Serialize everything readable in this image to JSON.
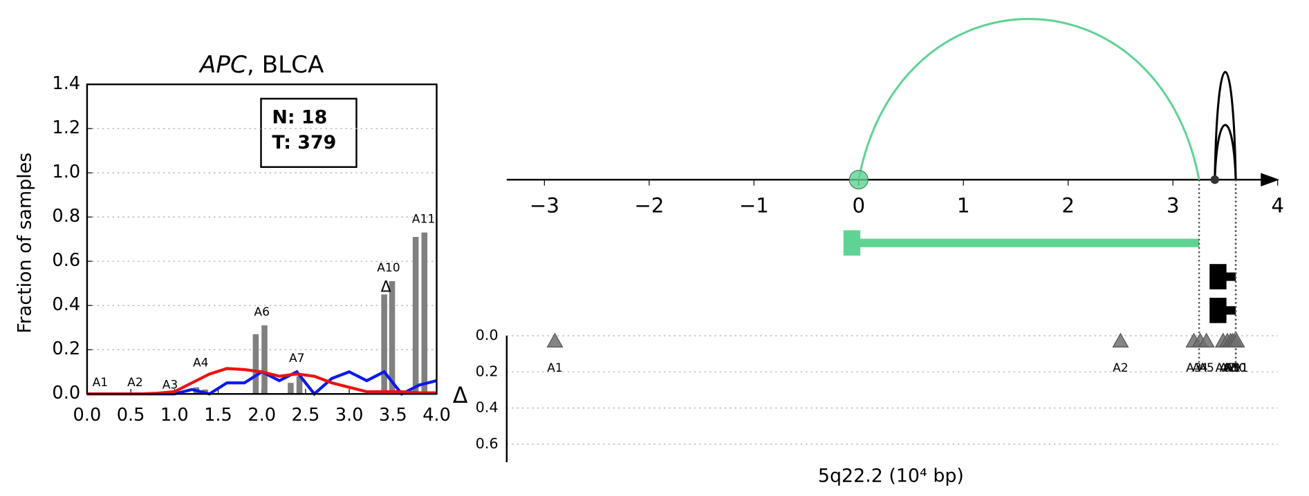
{
  "chart_data": [
    {
      "type": "bar",
      "title": [
        "APC",
        ", BLCA"
      ],
      "ylabel": "Fraction of samples",
      "info": [
        "N: 18",
        "T: 379"
      ],
      "xlim": [
        0,
        4
      ],
      "ylim": [
        0,
        1.4
      ],
      "xticks": [
        {
          "value": 0,
          "label": "0.0"
        },
        {
          "value": 0.5,
          "label": "0.5"
        },
        {
          "value": 1,
          "label": "1.0"
        },
        {
          "value": 1.5,
          "label": "1.5"
        },
        {
          "value": 2,
          "label": "2.0"
        },
        {
          "value": 2.5,
          "label": "2.5"
        },
        {
          "value": 3,
          "label": "3.0"
        },
        {
          "value": 3.5,
          "label": "3.5"
        },
        {
          "value": 4,
          "label": "4.0"
        }
      ],
      "yticks": [
        {
          "value": 0,
          "label": "0.0"
        },
        {
          "value": 0.2,
          "label": "0.2"
        },
        {
          "value": 0.4,
          "label": "0.4"
        },
        {
          "value": 0.6,
          "label": "0.6"
        },
        {
          "value": 0.8,
          "label": "0.8"
        },
        {
          "value": 1,
          "label": "1.0"
        },
        {
          "value": 1.2,
          "label": "1.2"
        },
        {
          "value": 1.4,
          "label": "1.4"
        }
      ],
      "grid": true,
      "x": [
        1.25,
        1.35,
        1.93,
        2.03,
        2.33,
        2.43,
        3.4,
        3.49,
        3.76,
        3.86
      ],
      "values": [
        0.03,
        0.02,
        0.27,
        0.31,
        0.05,
        0.08,
        0.45,
        0.51,
        0.71,
        0.73
      ],
      "color": "#808080",
      "lines": [
        {
          "color": "#0a1aee",
          "x": [
            0,
            0.2,
            0.4,
            0.6,
            0.8,
            1.0,
            1.2,
            1.4,
            1.6,
            1.8,
            2.0,
            2.2,
            2.4,
            2.6,
            2.8,
            3.0,
            3.2,
            3.4,
            3.6,
            3.8,
            4.0
          ],
          "values": [
            0,
            0,
            0,
            0,
            0,
            0,
            0.02,
            0.0,
            0.05,
            0.05,
            0.1,
            0.06,
            0.1,
            0.0,
            0.07,
            0.1,
            0.06,
            0.1,
            0.0,
            0.04,
            0.06
          ]
        },
        {
          "color": "#ee1111",
          "x": [
            0,
            0.2,
            0.4,
            0.6,
            0.8,
            1.0,
            1.2,
            1.4,
            1.6,
            1.8,
            2.0,
            2.2,
            2.4,
            2.6,
            2.8,
            3.0,
            3.2,
            3.4,
            3.6,
            3.8,
            4.0
          ],
          "values": [
            0,
            0,
            0,
            0,
            0.003,
            0.01,
            0.05,
            0.09,
            0.115,
            0.11,
            0.1,
            0.08,
            0.09,
            0.08,
            0.05,
            0.03,
            0.01,
            0.01,
            0.01,
            0.005,
            0.005
          ]
        }
      ],
      "annotations": [
        {
          "text": "A1",
          "x": 0.15,
          "y": 0.05
        },
        {
          "text": "A2",
          "x": 0.55,
          "y": 0.05
        },
        {
          "text": "A3",
          "x": 0.95,
          "y": 0.04
        },
        {
          "text": "A4",
          "x": 1.3,
          "y": 0.14
        },
        {
          "text": "A6",
          "x": 2.0,
          "y": 0.37
        },
        {
          "text": "A7",
          "x": 2.4,
          "y": 0.16
        },
        {
          "text": "A10",
          "x": 3.45,
          "y": 0.57
        },
        {
          "text": "A11",
          "x": 3.85,
          "y": 0.79
        },
        {
          "text": "Δ",
          "x": 3.42,
          "y": 0.48
        }
      ]
    },
    {
      "type": "gene",
      "xlabel": "5q22.2 (10⁴ bp)",
      "ylabel": "Δ",
      "xlim": [
        -3.36,
        4
      ],
      "xticks": [
        {
          "value": -3,
          "label": "−3"
        },
        {
          "value": -2,
          "label": "−2"
        },
        {
          "value": -1,
          "label": "−1"
        },
        0,
        1,
        2,
        3,
        4
      ],
      "ylim": [
        0,
        0.7
      ],
      "yticks": [
        {
          "value": 0,
          "label": "0.0"
        },
        {
          "value": 0.2,
          "label": "0.2"
        },
        {
          "value": 0.4,
          "label": "0.4"
        },
        {
          "value": 0.6,
          "label": "0.6"
        }
      ],
      "grid": true,
      "arcs": [
        {
          "start": 0,
          "end": 3.25,
          "color": "#5fd393"
        },
        {
          "start": 3.4,
          "end": 3.6,
          "color": "#000000"
        },
        {
          "start": 3.4,
          "end": 3.6,
          "color": "#000000"
        }
      ],
      "transcripts": [
        {
          "start": 0,
          "end": 3.25,
          "color": "#5fd393"
        },
        {
          "start": 3.35,
          "end": 3.6,
          "color": "#000000"
        },
        {
          "start": 3.35,
          "end": 3.6,
          "color": "#000000"
        }
      ],
      "points": {
        "color": "#707070",
        "labels": [
          "A1",
          "A2",
          "A3",
          "A4",
          "A5",
          "A6",
          "A7",
          "A8",
          "A9",
          "A10",
          "A11"
        ],
        "x": [
          -2.9,
          2.5,
          3.2,
          3.26,
          3.32,
          3.48,
          3.52,
          3.55,
          3.57,
          3.59,
          3.61
        ],
        "values": [
          0.03,
          0.03,
          0.03,
          0.03,
          0.03,
          0.03,
          0.03,
          0.03,
          0.03,
          0.03,
          0.03
        ]
      }
    }
  ]
}
